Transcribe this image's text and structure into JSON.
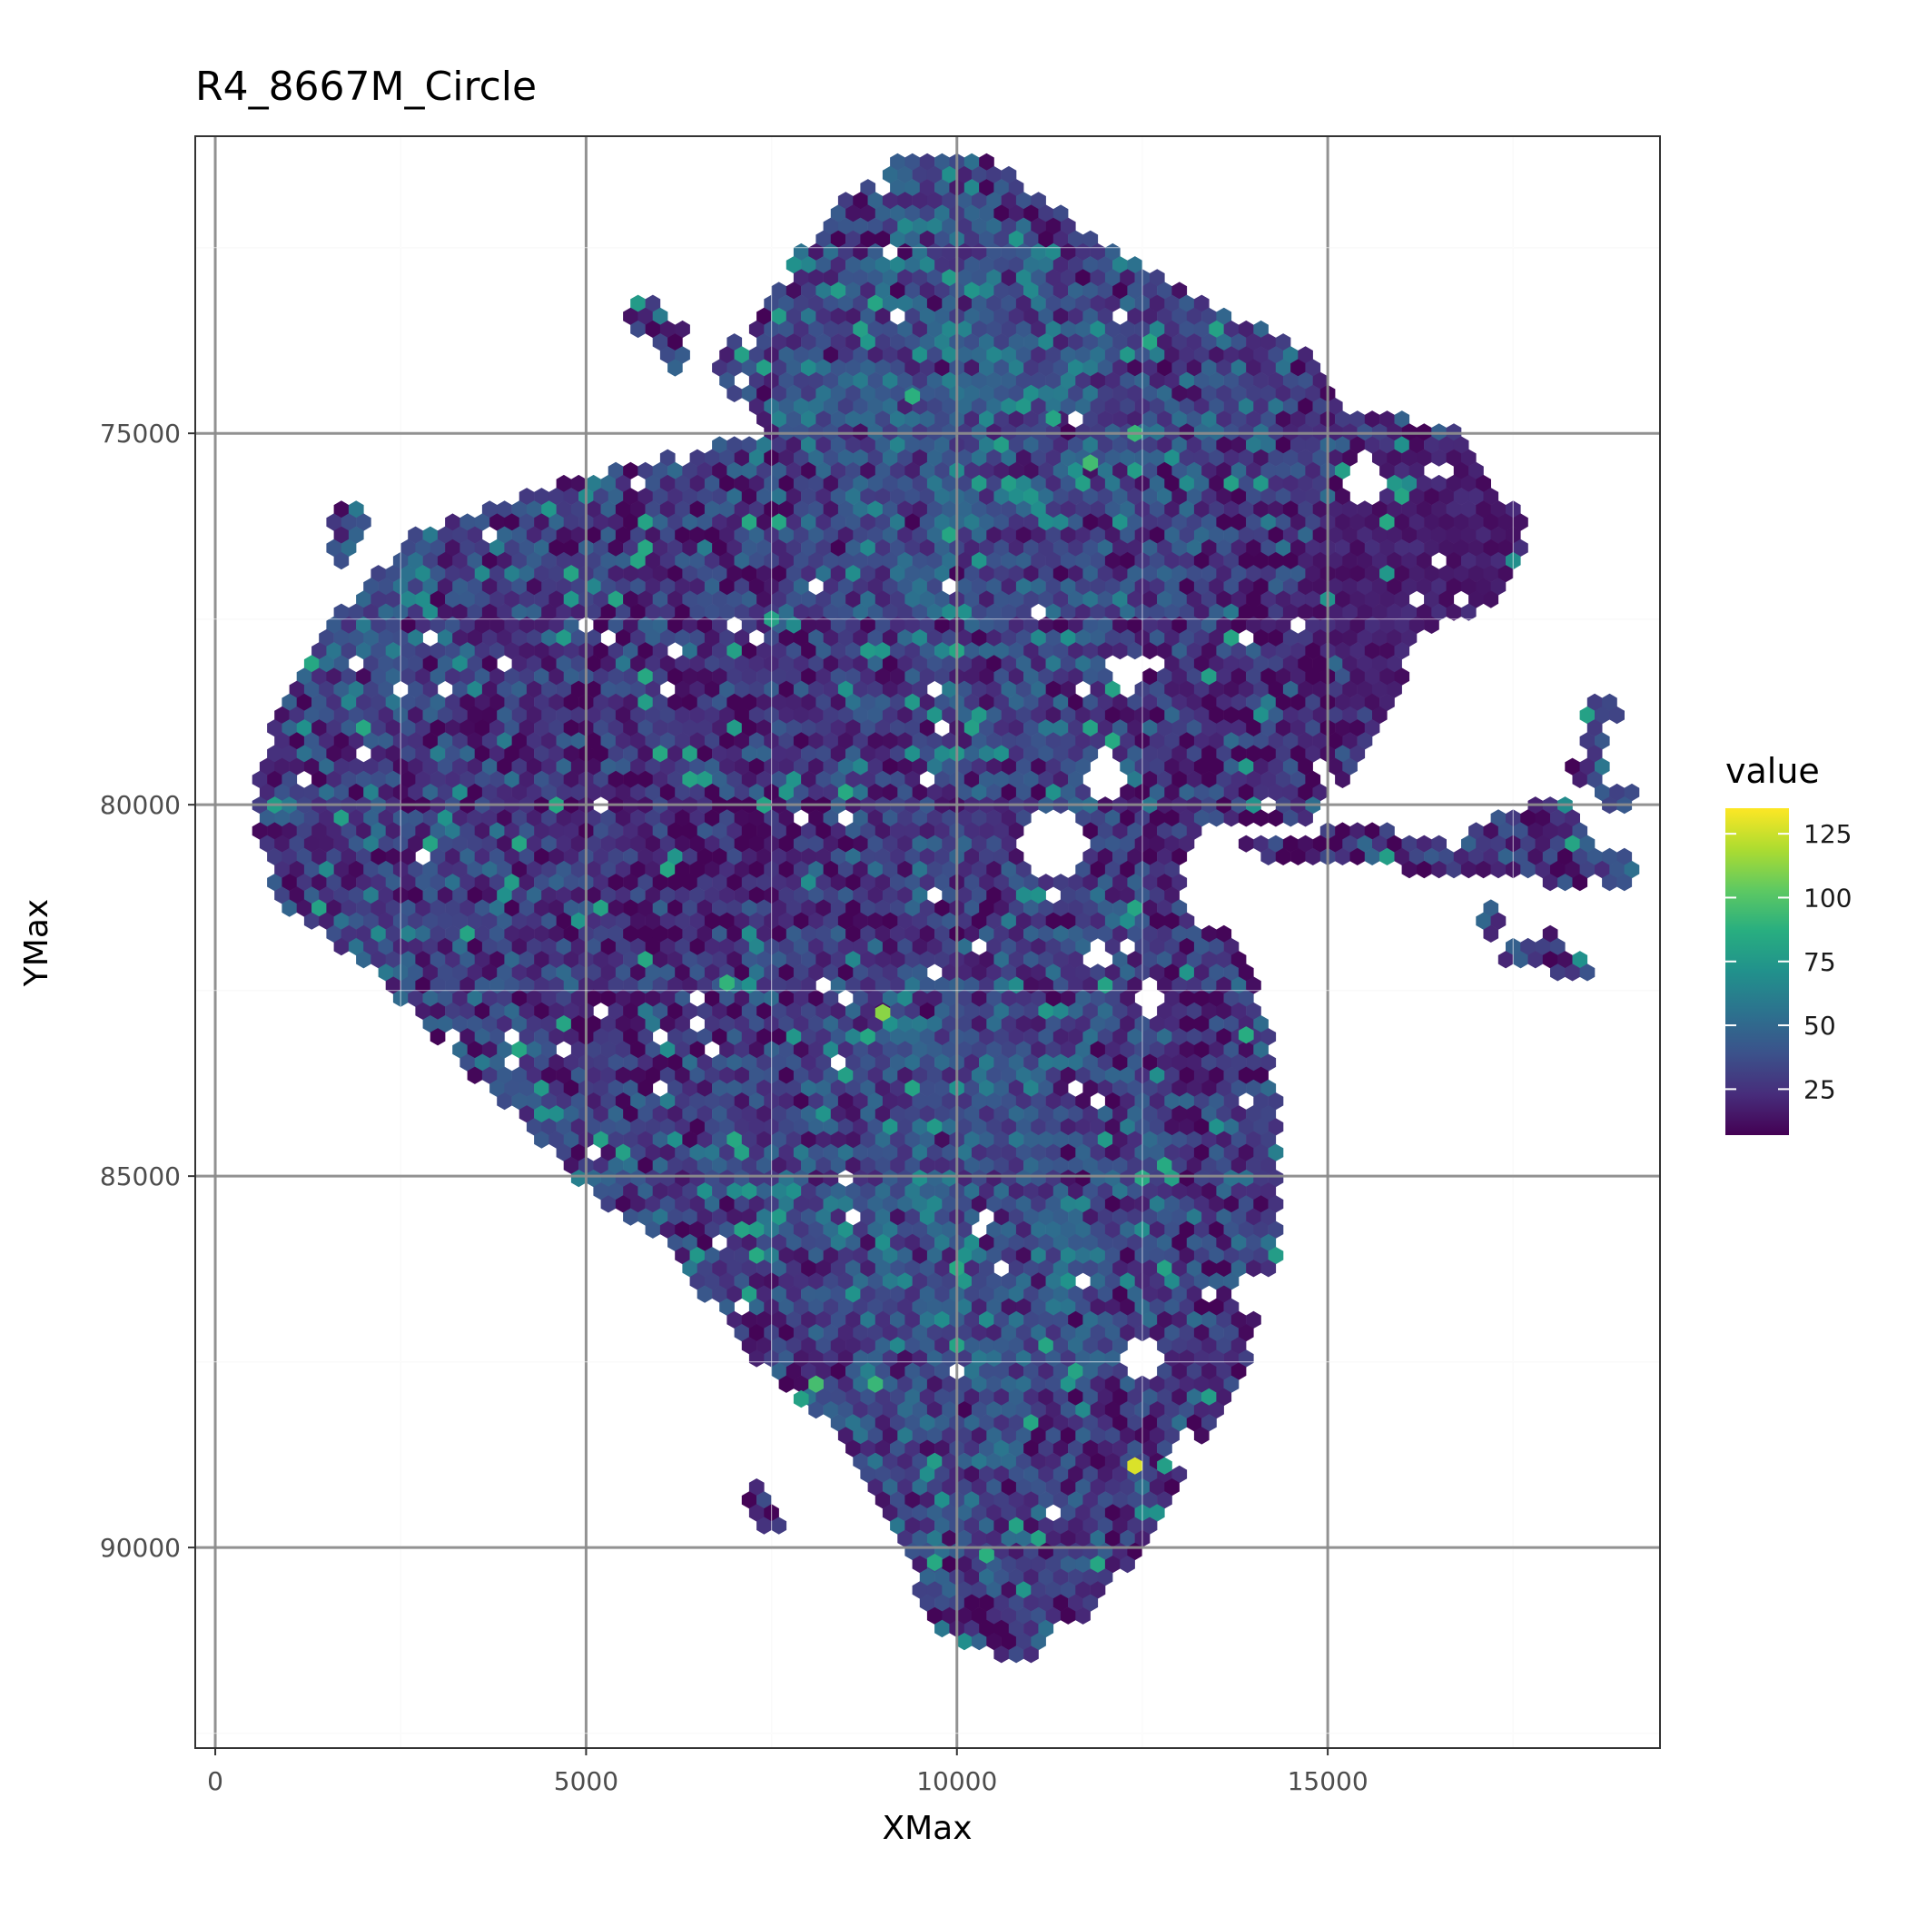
{
  "chart_data": {
    "type": "heatmap",
    "geometry": "hexbin",
    "title": "R4_8667M_Circle",
    "xlabel": "XMax",
    "ylabel": "YMax",
    "xlim": [
      -270,
      19480
    ],
    "ylim": [
      92700,
      71000
    ],
    "y_reversed": true,
    "x_ticks": [
      0,
      5000,
      10000,
      15000
    ],
    "x_tick_labels": [
      "0",
      "5000",
      "10000",
      "15000"
    ],
    "y_ticks": [
      75000,
      80000,
      85000,
      90000
    ],
    "y_tick_labels": [
      "75000",
      "80000",
      "85000",
      "90000"
    ],
    "grid": true,
    "theme": "bw",
    "hex_spacing": 200,
    "outline": [
      [
        7400,
        75000
      ],
      [
        5600,
        75400
      ],
      [
        4200,
        75800
      ],
      [
        2600,
        76400
      ],
      [
        1300,
        77800
      ],
      [
        800,
        78800
      ],
      [
        500,
        80000
      ],
      [
        800,
        81300
      ],
      [
        2200,
        82300
      ],
      [
        3300,
        83500
      ],
      [
        4100,
        84200
      ],
      [
        5000,
        85200
      ],
      [
        6200,
        86000
      ],
      [
        7000,
        87200
      ],
      [
        8200,
        88300
      ],
      [
        9200,
        89800
      ],
      [
        9700,
        91100
      ],
      [
        10800,
        91600
      ],
      [
        11800,
        90900
      ],
      [
        12700,
        89700
      ],
      [
        13300,
        88700
      ],
      [
        13900,
        87600
      ],
      [
        14300,
        86100
      ],
      [
        14400,
        84500
      ],
      [
        14200,
        82900
      ],
      [
        13700,
        81700
      ],
      [
        13000,
        81000
      ],
      [
        13300,
        80300
      ],
      [
        14800,
        80300
      ],
      [
        15700,
        78900
      ],
      [
        16300,
        77700
      ],
      [
        17300,
        77300
      ],
      [
        17700,
        76300
      ],
      [
        16700,
        74900
      ],
      [
        15300,
        74700
      ],
      [
        14600,
        73800
      ],
      [
        13200,
        73200
      ],
      [
        12400,
        72700
      ],
      [
        11500,
        72100
      ],
      [
        10400,
        71300
      ],
      [
        9300,
        71200
      ],
      [
        8200,
        72100
      ],
      [
        7400,
        73300
      ],
      [
        6700,
        74100
      ]
    ],
    "outline2": [
      [
        13000,
        80400
      ],
      [
        14400,
        80800
      ],
      [
        15700,
        80800
      ],
      [
        16800,
        81000
      ],
      [
        17700,
        80900
      ],
      [
        18300,
        81200
      ],
      [
        18700,
        80600
      ],
      [
        18200,
        79800
      ],
      [
        17000,
        80300
      ]
    ],
    "extras": [
      [
        1800,
        76200
      ],
      [
        1700,
        76600
      ],
      [
        2100,
        77500
      ],
      [
        2400,
        77200
      ],
      [
        2500,
        77000
      ],
      [
        6200,
        74000
      ],
      [
        6100,
        73700
      ],
      [
        5800,
        73400
      ],
      [
        17200,
        81600
      ],
      [
        17600,
        82000
      ],
      [
        18300,
        82200
      ],
      [
        18000,
        81900
      ],
      [
        18700,
        78700
      ],
      [
        18600,
        79100
      ],
      [
        18500,
        79600
      ],
      [
        18900,
        79900
      ],
      [
        18900,
        80900
      ],
      [
        7400,
        89600
      ],
      [
        7300,
        89400
      ]
    ],
    "holes": [
      [
        11300,
        80500,
        500
      ],
      [
        12000,
        79600,
        300
      ],
      [
        12300,
        78200,
        250
      ],
      [
        13600,
        81100,
        600
      ],
      [
        12600,
        82600,
        250
      ],
      [
        11900,
        82000,
        200
      ],
      [
        12500,
        87500,
        250
      ],
      [
        14000,
        86600,
        300
      ],
      [
        13100,
        88700,
        250
      ],
      [
        12400,
        90400,
        200
      ],
      [
        11400,
        91200,
        200
      ],
      [
        16400,
        79600,
        900
      ],
      [
        15500,
        75600,
        300
      ]
    ],
    "dark_region": {
      "center": [
        16500,
        76900
      ],
      "radius": 1800
    },
    "bright_cells": [
      [
        12400,
        88900,
        128
      ],
      [
        9000,
        82800,
        112
      ],
      [
        11800,
        75400,
        95
      ],
      [
        12400,
        75000,
        92
      ],
      [
        9400,
        74500,
        88
      ],
      [
        8100,
        87800,
        96
      ],
      [
        8900,
        87800,
        92
      ],
      [
        6900,
        82400,
        90
      ],
      [
        7500,
        77500,
        80
      ],
      [
        10400,
        90100,
        88
      ],
      [
        13900,
        83100,
        86
      ],
      [
        11300,
        74800,
        82
      ],
      [
        12800,
        88900,
        78
      ],
      [
        7900,
        88000,
        80
      ],
      [
        9700,
        90200,
        84
      ]
    ],
    "legend": {
      "title": "value",
      "ticks": [
        25,
        50,
        75,
        100,
        125
      ],
      "tick_labels": [
        "25",
        "50",
        "75",
        "100",
        "125"
      ],
      "range": [
        7,
        135
      ],
      "placement": "right",
      "colormap": "viridis"
    }
  }
}
